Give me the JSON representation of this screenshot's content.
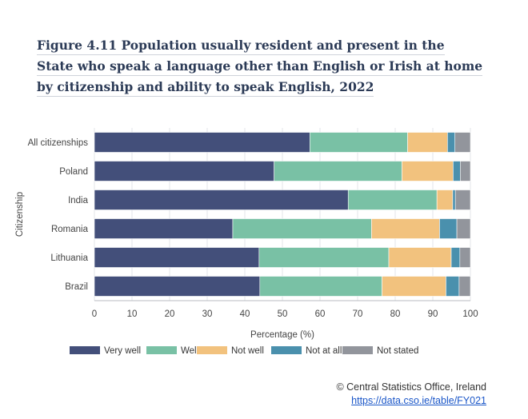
{
  "title": "Figure 4.11 Population usually resident and present in the State who speak a language other than English or Irish at home by citizenship and ability to speak English, 2022",
  "footer": {
    "credit": "© Central Statistics Office, Ireland",
    "link": "https://data.cso.ie/table/FY021"
  },
  "colors": {
    "Very well": "#434f7a",
    "Well": "#79c1a5",
    "Not well": "#f2c27e",
    "Not at all": "#4a90ad",
    "Not stated": "#92959c"
  },
  "chart_data": {
    "type": "bar",
    "orientation": "horizontal",
    "stacked": true,
    "categories": [
      "All citizenships",
      "Poland",
      "India",
      "Romania",
      "Lithuania",
      "Brazil"
    ],
    "series": [
      {
        "name": "Very well",
        "values": [
          57.3,
          47.8,
          67.5,
          36.8,
          43.8,
          44.0
        ]
      },
      {
        "name": "Well",
        "values": [
          26.0,
          34.0,
          23.6,
          36.9,
          34.5,
          32.5
        ]
      },
      {
        "name": "Not well",
        "values": [
          10.6,
          13.6,
          4.2,
          18.1,
          16.6,
          17.0
        ]
      },
      {
        "name": "Not at all",
        "values": [
          2.0,
          1.9,
          0.7,
          4.6,
          2.3,
          3.5
        ]
      },
      {
        "name": "Not stated",
        "values": [
          4.1,
          2.7,
          4.0,
          3.6,
          2.8,
          3.0
        ]
      }
    ],
    "xlabel": "Percentage (%)",
    "ylabel": "Citizenship",
    "xlim": [
      0,
      100
    ],
    "xticks": [
      0,
      10,
      20,
      30,
      40,
      50,
      60,
      70,
      80,
      90,
      100
    ],
    "grid": "vertical",
    "legend": "bottom"
  }
}
